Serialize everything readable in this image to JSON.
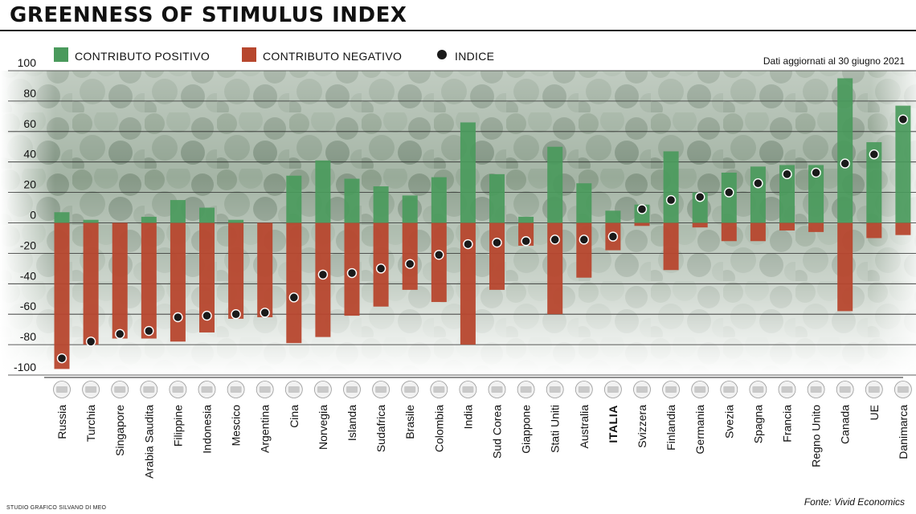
{
  "header": {
    "title": "GREENNESS OF STIMULUS INDEX"
  },
  "footer": {
    "credit": "STUDIO GRAFICO SILVANO DI MEO",
    "source": "Fonte: Vivid Economics"
  },
  "colors": {
    "positive": "#4a9a5c",
    "negative": "#b7472e",
    "index": "#1a1a1a",
    "highlight_label": "#9b1b1f"
  },
  "chart_data": {
    "type": "bar",
    "note": "Dati aggiornati al 30 giugno 2021",
    "legend": {
      "placement": "top-left",
      "items": [
        {
          "key": "positive",
          "label": "CONTRIBUTO POSITIVO",
          "marker": "square",
          "color": "#4a9a5c"
        },
        {
          "key": "negative",
          "label": "CONTRIBUTO NEGATIVO",
          "marker": "square",
          "color": "#b7472e"
        },
        {
          "key": "index",
          "label": "INDICE",
          "marker": "dot",
          "color": "#1a1a1a"
        }
      ]
    },
    "ylim": [
      -100,
      100
    ],
    "yticks": [
      100,
      80,
      60,
      40,
      20,
      0,
      -20,
      -40,
      -60,
      -80,
      -100
    ],
    "grid": true,
    "highlight_category": "ITALIA",
    "categories": [
      "Russia",
      "Turchia",
      "Singapore",
      "Arabia Saudita",
      "Filippine",
      "Indonesia",
      "Mescico",
      "Argentina",
      "Cina",
      "Norvegia",
      "Islanda",
      "Sudafrica",
      "Brasile",
      "Colombia",
      "India",
      "Sud Corea",
      "Giappone",
      "Stati Uniti",
      "Australia",
      "ITALIA",
      "Svizzera",
      "Finlandia",
      "Germania",
      "Svezia",
      "Spagna",
      "Francia",
      "Regno Unito",
      "Canada",
      "UE",
      "Danimarca"
    ],
    "flags": [
      "russia-flag-icon",
      "turkey-flag-icon",
      "singapore-flag-icon",
      "saudi-arabia-flag-icon",
      "philippines-flag-icon",
      "indonesia-flag-icon",
      "mexico-flag-icon",
      "argentina-flag-icon",
      "china-flag-icon",
      "norway-flag-icon",
      "iceland-flag-icon",
      "south-africa-flag-icon",
      "brazil-flag-icon",
      "colombia-flag-icon",
      "india-flag-icon",
      "south-korea-flag-icon",
      "japan-flag-icon",
      "usa-flag-icon",
      "australia-flag-icon",
      "italy-flag-icon",
      "switzerland-flag-icon",
      "finland-flag-icon",
      "germany-flag-icon",
      "sweden-flag-icon",
      "spain-flag-icon",
      "france-flag-icon",
      "uk-flag-icon",
      "canada-flag-icon",
      "eu-flag-icon",
      "denmark-flag-icon"
    ],
    "series": [
      {
        "name": "CONTRIBUTO POSITIVO",
        "values": [
          7,
          2,
          0,
          4,
          15,
          10,
          2,
          0,
          31,
          41,
          29,
          24,
          18,
          30,
          66,
          32,
          4,
          50,
          26,
          8,
          12,
          47,
          20,
          33,
          37,
          38,
          38,
          95,
          53,
          77
        ]
      },
      {
        "name": "CONTRIBUTO NEGATIVO",
        "values": [
          -96,
          -80,
          -76,
          -76,
          -78,
          -72,
          -63,
          -62,
          -79,
          -75,
          -61,
          -55,
          -44,
          -52,
          -80,
          -44,
          -15,
          -60,
          -36,
          -18,
          -2,
          -31,
          -3,
          -12,
          -12,
          -5,
          -6,
          -58,
          -10,
          -8
        ]
      },
      {
        "name": "INDICE",
        "values": [
          -89,
          -78,
          -73,
          -71,
          -62,
          -61,
          -60,
          -59,
          -49,
          -34,
          -33,
          -30,
          -27,
          -21,
          -14,
          -13,
          -12,
          -11,
          -11,
          -9,
          9,
          15,
          17,
          20,
          26,
          32,
          33,
          39,
          45,
          68
        ]
      }
    ]
  }
}
